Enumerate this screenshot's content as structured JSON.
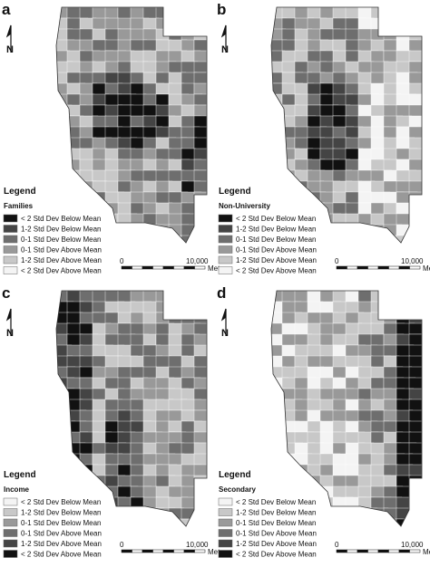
{
  "panels": [
    {
      "label": "a",
      "north": "N",
      "legend_title": "Legend",
      "legend_subtitle": "Families",
      "legend": [
        "< 2 Std Dev Below Mean",
        "1-2 Std Dev Below Mean",
        "0-1 Std Dev Below Mean",
        "0-1 Std Dev Above Mean",
        "1-2 Std Dev Above Mean",
        "< 2 Std Dev Above Mean"
      ],
      "colors": [
        "#111111",
        "#444444",
        "#6e6e6e",
        "#999999",
        "#c8c8c8",
        "#f4f4f4"
      ],
      "scale_start": "0",
      "scale_end": "10,000",
      "scale_unit": "Meters"
    },
    {
      "label": "b",
      "north": "N",
      "legend_title": "Legend",
      "legend_subtitle": "Non-University",
      "legend": [
        "< 2 Std Dev Below Mean",
        "1-2 Std Dev Below Mean",
        "0-1 Std Dev Below Mean",
        "0-1 Std Dev Above Mean",
        "1-2 Std Dev Above Mean",
        "< 2 Std Dev Above Mean"
      ],
      "colors": [
        "#111111",
        "#444444",
        "#6e6e6e",
        "#999999",
        "#c8c8c8",
        "#f4f4f4"
      ],
      "scale_start": "0",
      "scale_end": "10,000",
      "scale_unit": "Meters"
    },
    {
      "label": "c",
      "north": "N",
      "legend_title": "Legend",
      "legend_subtitle": "Income",
      "legend": [
        "< 2 Std Dev Below Mean",
        "1-2 Std Dev Below Mean",
        "0-1 Std Dev Below Mean",
        "0-1 Std Dev Above Mean",
        "1-2 Std Dev Above Mean",
        "< 2 Std Dev Above Mean"
      ],
      "colors": [
        "#f4f4f4",
        "#c8c8c8",
        "#999999",
        "#6e6e6e",
        "#444444",
        "#111111"
      ],
      "scale_start": "0",
      "scale_end": "10,000",
      "scale_unit": "Meters"
    },
    {
      "label": "d",
      "north": "N",
      "legend_title": "Legend",
      "legend_subtitle": "Secondary",
      "legend": [
        "< 2 Std Dev Below Mean",
        "1-2 Std Dev Below Mean",
        "0-1 Std Dev Below Mean",
        "0-1 Std Dev Above Mean",
        "1-2 Std Dev Above Mean",
        "< 2 Std Dev Above Mean"
      ],
      "colors": [
        "#f4f4f4",
        "#c8c8c8",
        "#999999",
        "#6e6e6e",
        "#444444",
        "#111111"
      ],
      "scale_start": "0",
      "scale_end": "10,000",
      "scale_unit": "Meters"
    }
  ]
}
